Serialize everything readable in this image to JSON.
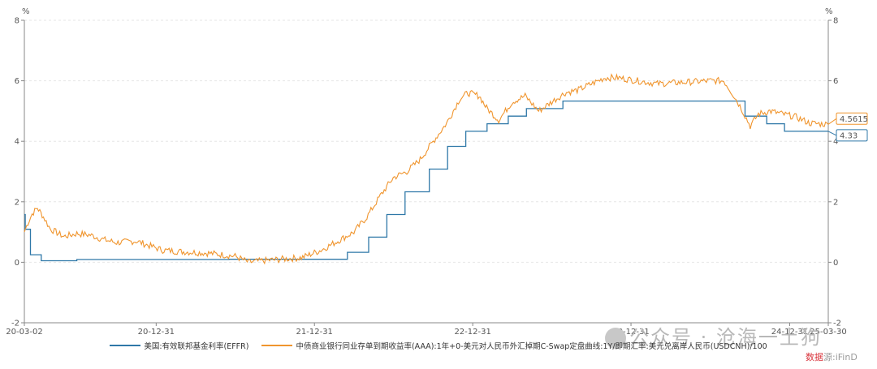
{
  "chart_data": {
    "type": "line",
    "title": "",
    "y_unit_left": "%",
    "y_unit_right": "%",
    "ylim": [
      -2,
      8
    ],
    "yticks": [
      "8",
      "6",
      "4",
      "2",
      "0",
      "-2"
    ],
    "xticks": [
      "20-03-02",
      "20-12-31",
      "21-12-31",
      "22-12-31",
      "23-12-31",
      "24-12-31",
      "25-03-30"
    ],
    "x_range": [
      "2020-03-02",
      "2025-03-30"
    ],
    "grid": true,
    "legend_position": "bottom",
    "colors": {
      "effr": "#2f78a8",
      "ncd": "#f0952e"
    },
    "series": [
      {
        "name": "美国:有效联邦基金利率(EFFR)",
        "color": "#2f78a8",
        "last_label": "4.33",
        "points": [
          [
            "2020-03-02",
            1.58
          ],
          [
            "2020-03-04",
            1.09
          ],
          [
            "2020-03-16",
            0.25
          ],
          [
            "2020-04-10",
            0.05
          ],
          [
            "2020-07-01",
            0.09
          ],
          [
            "2021-06-17",
            0.1
          ],
          [
            "2022-03-17",
            0.33
          ],
          [
            "2022-05-05",
            0.83
          ],
          [
            "2022-06-16",
            1.58
          ],
          [
            "2022-07-28",
            2.33
          ],
          [
            "2022-09-22",
            3.08
          ],
          [
            "2022-11-03",
            3.83
          ],
          [
            "2022-12-15",
            4.33
          ],
          [
            "2023-02-02",
            4.58
          ],
          [
            "2023-03-23",
            4.83
          ],
          [
            "2023-05-04",
            5.08
          ],
          [
            "2023-07-27",
            5.33
          ],
          [
            "2024-09-19",
            4.83
          ],
          [
            "2024-11-08",
            4.58
          ],
          [
            "2024-12-19",
            4.33
          ],
          [
            "2025-03-30",
            4.33
          ]
        ]
      },
      {
        "name": "中债商业银行同业存单到期收益率(AAA):1年+0-美元对人民币外汇掉期C-Swap定盘曲线:1Y/即期汇率:美元兑离岸人民币(USDCNH)/100",
        "color": "#f0952e",
        "last_label": "4.5615",
        "points": [
          [
            "2020-03-02",
            1.0
          ],
          [
            "2020-03-10",
            1.3
          ],
          [
            "2020-03-20",
            1.6
          ],
          [
            "2020-04-01",
            1.8
          ],
          [
            "2020-04-15",
            1.5
          ],
          [
            "2020-05-01",
            1.1
          ],
          [
            "2020-06-01",
            0.85
          ],
          [
            "2020-07-01",
            0.95
          ],
          [
            "2020-08-01",
            0.9
          ],
          [
            "2020-09-01",
            0.75
          ],
          [
            "2020-10-01",
            0.65
          ],
          [
            "2020-11-15",
            0.7
          ],
          [
            "2020-12-15",
            0.55
          ],
          [
            "2021-01-15",
            0.4
          ],
          [
            "2021-03-01",
            0.35
          ],
          [
            "2021-05-01",
            0.3
          ],
          [
            "2021-07-01",
            0.2
          ],
          [
            "2021-08-01",
            0.0
          ],
          [
            "2021-09-01",
            0.05
          ],
          [
            "2021-10-15",
            0.1
          ],
          [
            "2021-12-01",
            0.15
          ],
          [
            "2022-01-15",
            0.4
          ],
          [
            "2022-03-01",
            0.75
          ],
          [
            "2022-04-01",
            1.0
          ],
          [
            "2022-05-01",
            1.5
          ],
          [
            "2022-06-01",
            2.2
          ],
          [
            "2022-07-01",
            2.8
          ],
          [
            "2022-08-01",
            3.0
          ],
          [
            "2022-09-01",
            3.4
          ],
          [
            "2022-10-01",
            4.0
          ],
          [
            "2022-11-01",
            4.6
          ],
          [
            "2022-12-01",
            5.4
          ],
          [
            "2022-12-20",
            5.6
          ],
          [
            "2023-01-15",
            5.5
          ],
          [
            "2023-02-01",
            5.1
          ],
          [
            "2023-03-01",
            4.7
          ],
          [
            "2023-04-01",
            5.3
          ],
          [
            "2023-05-01",
            5.5
          ],
          [
            "2023-06-01",
            5.0
          ],
          [
            "2023-07-01",
            5.3
          ],
          [
            "2023-08-01",
            5.6
          ],
          [
            "2023-09-01",
            5.7
          ],
          [
            "2023-10-01",
            5.9
          ],
          [
            "2023-11-01",
            6.1
          ],
          [
            "2023-12-01",
            6.1
          ],
          [
            "2024-01-15",
            6.0
          ],
          [
            "2024-03-01",
            5.9
          ],
          [
            "2024-05-01",
            5.95
          ],
          [
            "2024-07-01",
            6.0
          ],
          [
            "2024-08-01",
            6.0
          ],
          [
            "2024-08-20",
            5.6
          ],
          [
            "2024-09-10",
            5.1
          ],
          [
            "2024-10-01",
            4.5
          ],
          [
            "2024-10-20",
            4.9
          ],
          [
            "2024-11-15",
            5.0
          ],
          [
            "2024-12-15",
            4.9
          ],
          [
            "2025-01-15",
            4.8
          ],
          [
            "2025-02-15",
            4.6
          ],
          [
            "2025-03-30",
            4.56
          ]
        ]
      }
    ]
  },
  "watermark": {
    "icon": "wechat-icon",
    "text": "公众号 · 沧海一土狗"
  },
  "source": {
    "prefix": "数据",
    "suffix": "源:iFinD"
  }
}
